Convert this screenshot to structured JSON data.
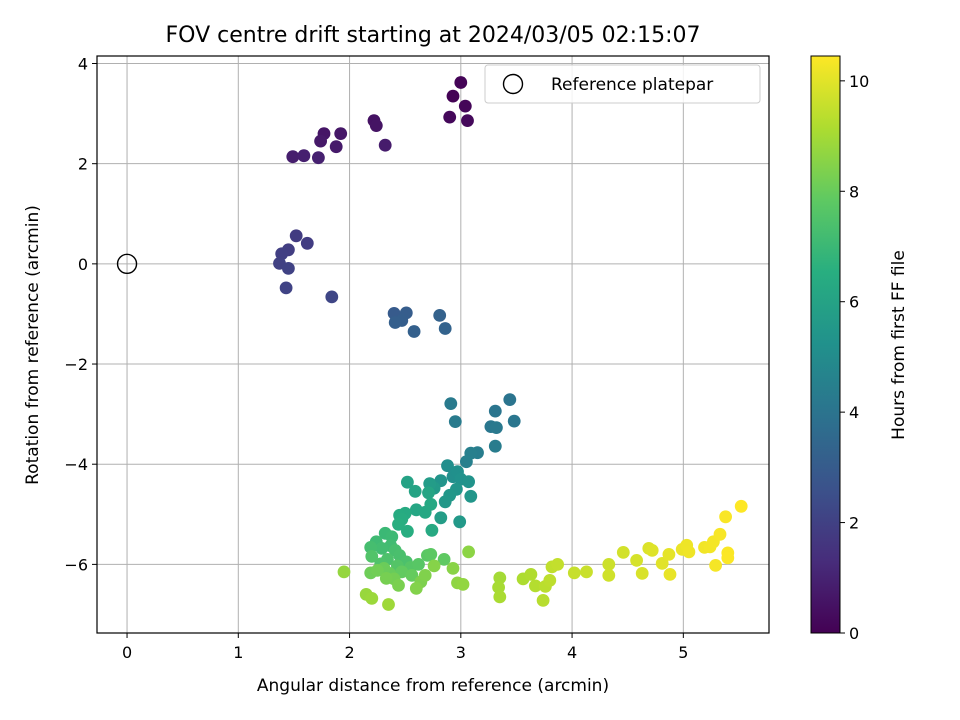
{
  "chart_data": {
    "type": "scatter",
    "title": "FOV centre drift starting at 2024/03/05 02:15:07",
    "xlabel": "Angular distance from reference (arcmin)",
    "ylabel": "Rotation from reference (arcmin)",
    "xlim": [
      -0.27,
      5.77
    ],
    "ylim": [
      -7.37,
      4.15
    ],
    "xticks": [
      0,
      1,
      2,
      3,
      4,
      5
    ],
    "yticks": [
      -6,
      -4,
      -2,
      0,
      2,
      4
    ],
    "grid": true,
    "legend": {
      "position": "top-right",
      "entries": [
        "Reference platepar"
      ]
    },
    "reference_point": {
      "x": 0,
      "y": 0,
      "label": "Reference platepar"
    },
    "colorbar": {
      "label": "Hours from first FF file",
      "min": 0,
      "max": 10.45,
      "ticks": [
        0,
        2,
        4,
        6,
        8,
        10
      ],
      "colormap": "viridis"
    },
    "points": [
      {
        "x": 2.93,
        "y": 3.35,
        "c": 0.05
      },
      {
        "x": 3.0,
        "y": 3.62,
        "c": 0.1
      },
      {
        "x": 3.04,
        "y": 3.15,
        "c": 0.15
      },
      {
        "x": 2.9,
        "y": 2.93,
        "c": 0.2
      },
      {
        "x": 3.06,
        "y": 2.86,
        "c": 0.25
      },
      {
        "x": 2.22,
        "y": 2.86,
        "c": 0.5
      },
      {
        "x": 2.24,
        "y": 2.76,
        "c": 0.55
      },
      {
        "x": 1.77,
        "y": 2.6,
        "c": 0.6
      },
      {
        "x": 1.92,
        "y": 2.6,
        "c": 0.65
      },
      {
        "x": 1.74,
        "y": 2.45,
        "c": 0.7
      },
      {
        "x": 1.88,
        "y": 2.34,
        "c": 0.75
      },
      {
        "x": 2.32,
        "y": 2.37,
        "c": 0.8
      },
      {
        "x": 1.49,
        "y": 2.14,
        "c": 0.85
      },
      {
        "x": 1.59,
        "y": 2.16,
        "c": 0.9
      },
      {
        "x": 1.72,
        "y": 2.12,
        "c": 0.95
      },
      {
        "x": 1.52,
        "y": 0.56,
        "c": 1.8
      },
      {
        "x": 1.62,
        "y": 0.41,
        "c": 1.85
      },
      {
        "x": 1.45,
        "y": 0.28,
        "c": 1.9
      },
      {
        "x": 1.39,
        "y": 0.2,
        "c": 1.95
      },
      {
        "x": 1.37,
        "y": 0.01,
        "c": 2.0
      },
      {
        "x": 1.45,
        "y": -0.09,
        "c": 2.05
      },
      {
        "x": 1.43,
        "y": -0.48,
        "c": 2.1
      },
      {
        "x": 1.84,
        "y": -0.66,
        "c": 2.2
      },
      {
        "x": 2.4,
        "y": -0.99,
        "c": 3.0
      },
      {
        "x": 2.51,
        "y": -0.98,
        "c": 3.05
      },
      {
        "x": 2.47,
        "y": -1.13,
        "c": 3.1
      },
      {
        "x": 2.41,
        "y": -1.17,
        "c": 3.15
      },
      {
        "x": 2.58,
        "y": -1.35,
        "c": 3.2
      },
      {
        "x": 2.81,
        "y": -1.03,
        "c": 3.25
      },
      {
        "x": 2.86,
        "y": -1.29,
        "c": 3.3
      },
      {
        "x": 3.44,
        "y": -2.71,
        "c": 4.0
      },
      {
        "x": 3.31,
        "y": -2.94,
        "c": 4.05
      },
      {
        "x": 3.48,
        "y": -3.14,
        "c": 4.1
      },
      {
        "x": 3.27,
        "y": -3.25,
        "c": 4.15
      },
      {
        "x": 3.32,
        "y": -3.27,
        "c": 4.2
      },
      {
        "x": 2.91,
        "y": -2.79,
        "c": 4.25
      },
      {
        "x": 2.95,
        "y": -3.15,
        "c": 4.3
      },
      {
        "x": 3.31,
        "y": -3.64,
        "c": 4.35
      },
      {
        "x": 3.15,
        "y": -3.77,
        "c": 4.4
      },
      {
        "x": 3.09,
        "y": -3.78,
        "c": 4.45
      },
      {
        "x": 3.05,
        "y": -3.95,
        "c": 4.5
      },
      {
        "x": 2.88,
        "y": -4.03,
        "c": 5.1
      },
      {
        "x": 2.93,
        "y": -4.25,
        "c": 5.15
      },
      {
        "x": 2.97,
        "y": -4.15,
        "c": 5.2
      },
      {
        "x": 3.0,
        "y": -4.3,
        "c": 5.25
      },
      {
        "x": 3.07,
        "y": -4.35,
        "c": 5.3
      },
      {
        "x": 2.82,
        "y": -4.33,
        "c": 5.35
      },
      {
        "x": 2.96,
        "y": -4.5,
        "c": 5.4
      },
      {
        "x": 3.09,
        "y": -4.64,
        "c": 5.45
      },
      {
        "x": 2.9,
        "y": -4.62,
        "c": 5.5
      },
      {
        "x": 2.86,
        "y": -4.75,
        "c": 5.55
      },
      {
        "x": 2.99,
        "y": -5.15,
        "c": 5.6
      },
      {
        "x": 2.76,
        "y": -4.48,
        "c": 5.65
      },
      {
        "x": 2.72,
        "y": -4.39,
        "c": 5.7
      },
      {
        "x": 2.82,
        "y": -5.07,
        "c": 5.75
      },
      {
        "x": 2.52,
        "y": -4.36,
        "c": 6.0
      },
      {
        "x": 2.59,
        "y": -4.54,
        "c": 6.05
      },
      {
        "x": 2.71,
        "y": -4.57,
        "c": 6.1
      },
      {
        "x": 2.6,
        "y": -4.91,
        "c": 6.15
      },
      {
        "x": 2.68,
        "y": -4.96,
        "c": 6.2
      },
      {
        "x": 2.73,
        "y": -4.8,
        "c": 6.25
      },
      {
        "x": 2.74,
        "y": -5.32,
        "c": 6.3
      },
      {
        "x": 2.5,
        "y": -4.98,
        "c": 6.35
      },
      {
        "x": 2.45,
        "y": -5.02,
        "c": 6.4
      },
      {
        "x": 2.47,
        "y": -5.1,
        "c": 6.45
      },
      {
        "x": 2.52,
        "y": -5.34,
        "c": 6.5
      },
      {
        "x": 2.44,
        "y": -5.2,
        "c": 6.55
      },
      {
        "x": 2.32,
        "y": -5.38,
        "c": 7.0
      },
      {
        "x": 2.38,
        "y": -5.45,
        "c": 7.05
      },
      {
        "x": 2.24,
        "y": -5.55,
        "c": 7.1
      },
      {
        "x": 2.37,
        "y": -5.63,
        "c": 7.15
      },
      {
        "x": 2.29,
        "y": -5.68,
        "c": 7.2
      },
      {
        "x": 2.19,
        "y": -5.66,
        "c": 7.25
      },
      {
        "x": 2.41,
        "y": -5.72,
        "c": 7.3
      },
      {
        "x": 2.45,
        "y": -5.82,
        "c": 7.35
      },
      {
        "x": 2.51,
        "y": -5.95,
        "c": 7.4
      },
      {
        "x": 2.34,
        "y": -5.9,
        "c": 7.45
      },
      {
        "x": 2.28,
        "y": -5.99,
        "c": 7.5
      },
      {
        "x": 2.2,
        "y": -5.84,
        "c": 7.55
      },
      {
        "x": 2.43,
        "y": -6.03,
        "c": 7.6
      },
      {
        "x": 2.55,
        "y": -6.06,
        "c": 7.65
      },
      {
        "x": 2.62,
        "y": -6.0,
        "c": 7.7
      },
      {
        "x": 2.7,
        "y": -5.82,
        "c": 7.75
      },
      {
        "x": 2.73,
        "y": -5.8,
        "c": 7.8
      },
      {
        "x": 2.85,
        "y": -5.9,
        "c": 7.85
      },
      {
        "x": 2.47,
        "y": -6.15,
        "c": 7.9
      },
      {
        "x": 2.56,
        "y": -6.22,
        "c": 7.95
      },
      {
        "x": 2.36,
        "y": -6.18,
        "c": 8.0
      },
      {
        "x": 2.31,
        "y": -6.08,
        "c": 8.05
      },
      {
        "x": 2.19,
        "y": -6.17,
        "c": 8.1
      },
      {
        "x": 2.25,
        "y": -6.12,
        "c": 8.15
      },
      {
        "x": 2.4,
        "y": -6.29,
        "c": 8.2
      },
      {
        "x": 2.33,
        "y": -6.28,
        "c": 8.25
      },
      {
        "x": 2.44,
        "y": -6.42,
        "c": 8.3
      },
      {
        "x": 2.64,
        "y": -6.35,
        "c": 8.35
      },
      {
        "x": 2.68,
        "y": -6.22,
        "c": 8.4
      },
      {
        "x": 2.6,
        "y": -6.48,
        "c": 8.45
      },
      {
        "x": 2.76,
        "y": -6.03,
        "c": 8.5
      },
      {
        "x": 2.93,
        "y": -6.08,
        "c": 8.55
      },
      {
        "x": 3.07,
        "y": -5.75,
        "c": 8.6
      },
      {
        "x": 2.97,
        "y": -6.37,
        "c": 8.65
      },
      {
        "x": 3.02,
        "y": -6.4,
        "c": 8.7
      },
      {
        "x": 1.95,
        "y": -6.15,
        "c": 8.75
      },
      {
        "x": 2.15,
        "y": -6.6,
        "c": 8.8
      },
      {
        "x": 2.2,
        "y": -6.68,
        "c": 8.85
      },
      {
        "x": 2.35,
        "y": -6.8,
        "c": 8.9
      },
      {
        "x": 3.35,
        "y": -6.27,
        "c": 9.0
      },
      {
        "x": 3.34,
        "y": -6.46,
        "c": 9.05
      },
      {
        "x": 3.35,
        "y": -6.65,
        "c": 9.1
      },
      {
        "x": 3.56,
        "y": -6.29,
        "c": 9.15
      },
      {
        "x": 3.63,
        "y": -6.2,
        "c": 9.2
      },
      {
        "x": 3.67,
        "y": -6.43,
        "c": 9.25
      },
      {
        "x": 3.74,
        "y": -6.72,
        "c": 9.3
      },
      {
        "x": 3.76,
        "y": -6.44,
        "c": 9.35
      },
      {
        "x": 3.8,
        "y": -6.32,
        "c": 9.4
      },
      {
        "x": 3.82,
        "y": -6.05,
        "c": 9.45
      },
      {
        "x": 3.87,
        "y": -6.0,
        "c": 9.5
      },
      {
        "x": 4.02,
        "y": -6.17,
        "c": 9.55
      },
      {
        "x": 4.13,
        "y": -6.15,
        "c": 9.6
      },
      {
        "x": 4.33,
        "y": -6.0,
        "c": 9.65
      },
      {
        "x": 4.33,
        "y": -6.22,
        "c": 9.7
      },
      {
        "x": 4.46,
        "y": -5.76,
        "c": 9.75
      },
      {
        "x": 4.58,
        "y": -5.92,
        "c": 9.8
      },
      {
        "x": 4.63,
        "y": -6.18,
        "c": 9.85
      },
      {
        "x": 4.69,
        "y": -5.68,
        "c": 9.9
      },
      {
        "x": 4.72,
        "y": -5.72,
        "c": 9.95
      },
      {
        "x": 4.81,
        "y": -5.98,
        "c": 10.0
      },
      {
        "x": 4.87,
        "y": -5.8,
        "c": 10.05
      },
      {
        "x": 4.88,
        "y": -6.2,
        "c": 10.1
      },
      {
        "x": 4.99,
        "y": -5.7,
        "c": 10.15
      },
      {
        "x": 5.03,
        "y": -5.62,
        "c": 10.2
      },
      {
        "x": 5.05,
        "y": -5.75,
        "c": 10.22
      },
      {
        "x": 5.19,
        "y": -5.66,
        "c": 10.25
      },
      {
        "x": 5.24,
        "y": -5.65,
        "c": 10.28
      },
      {
        "x": 5.27,
        "y": -5.55,
        "c": 10.3
      },
      {
        "x": 5.29,
        "y": -6.02,
        "c": 10.32
      },
      {
        "x": 5.33,
        "y": -5.4,
        "c": 10.35
      },
      {
        "x": 5.38,
        "y": -5.05,
        "c": 10.38
      },
      {
        "x": 5.4,
        "y": -5.77,
        "c": 10.4
      },
      {
        "x": 5.4,
        "y": -5.87,
        "c": 10.42
      },
      {
        "x": 5.52,
        "y": -4.84,
        "c": 10.45
      }
    ]
  }
}
